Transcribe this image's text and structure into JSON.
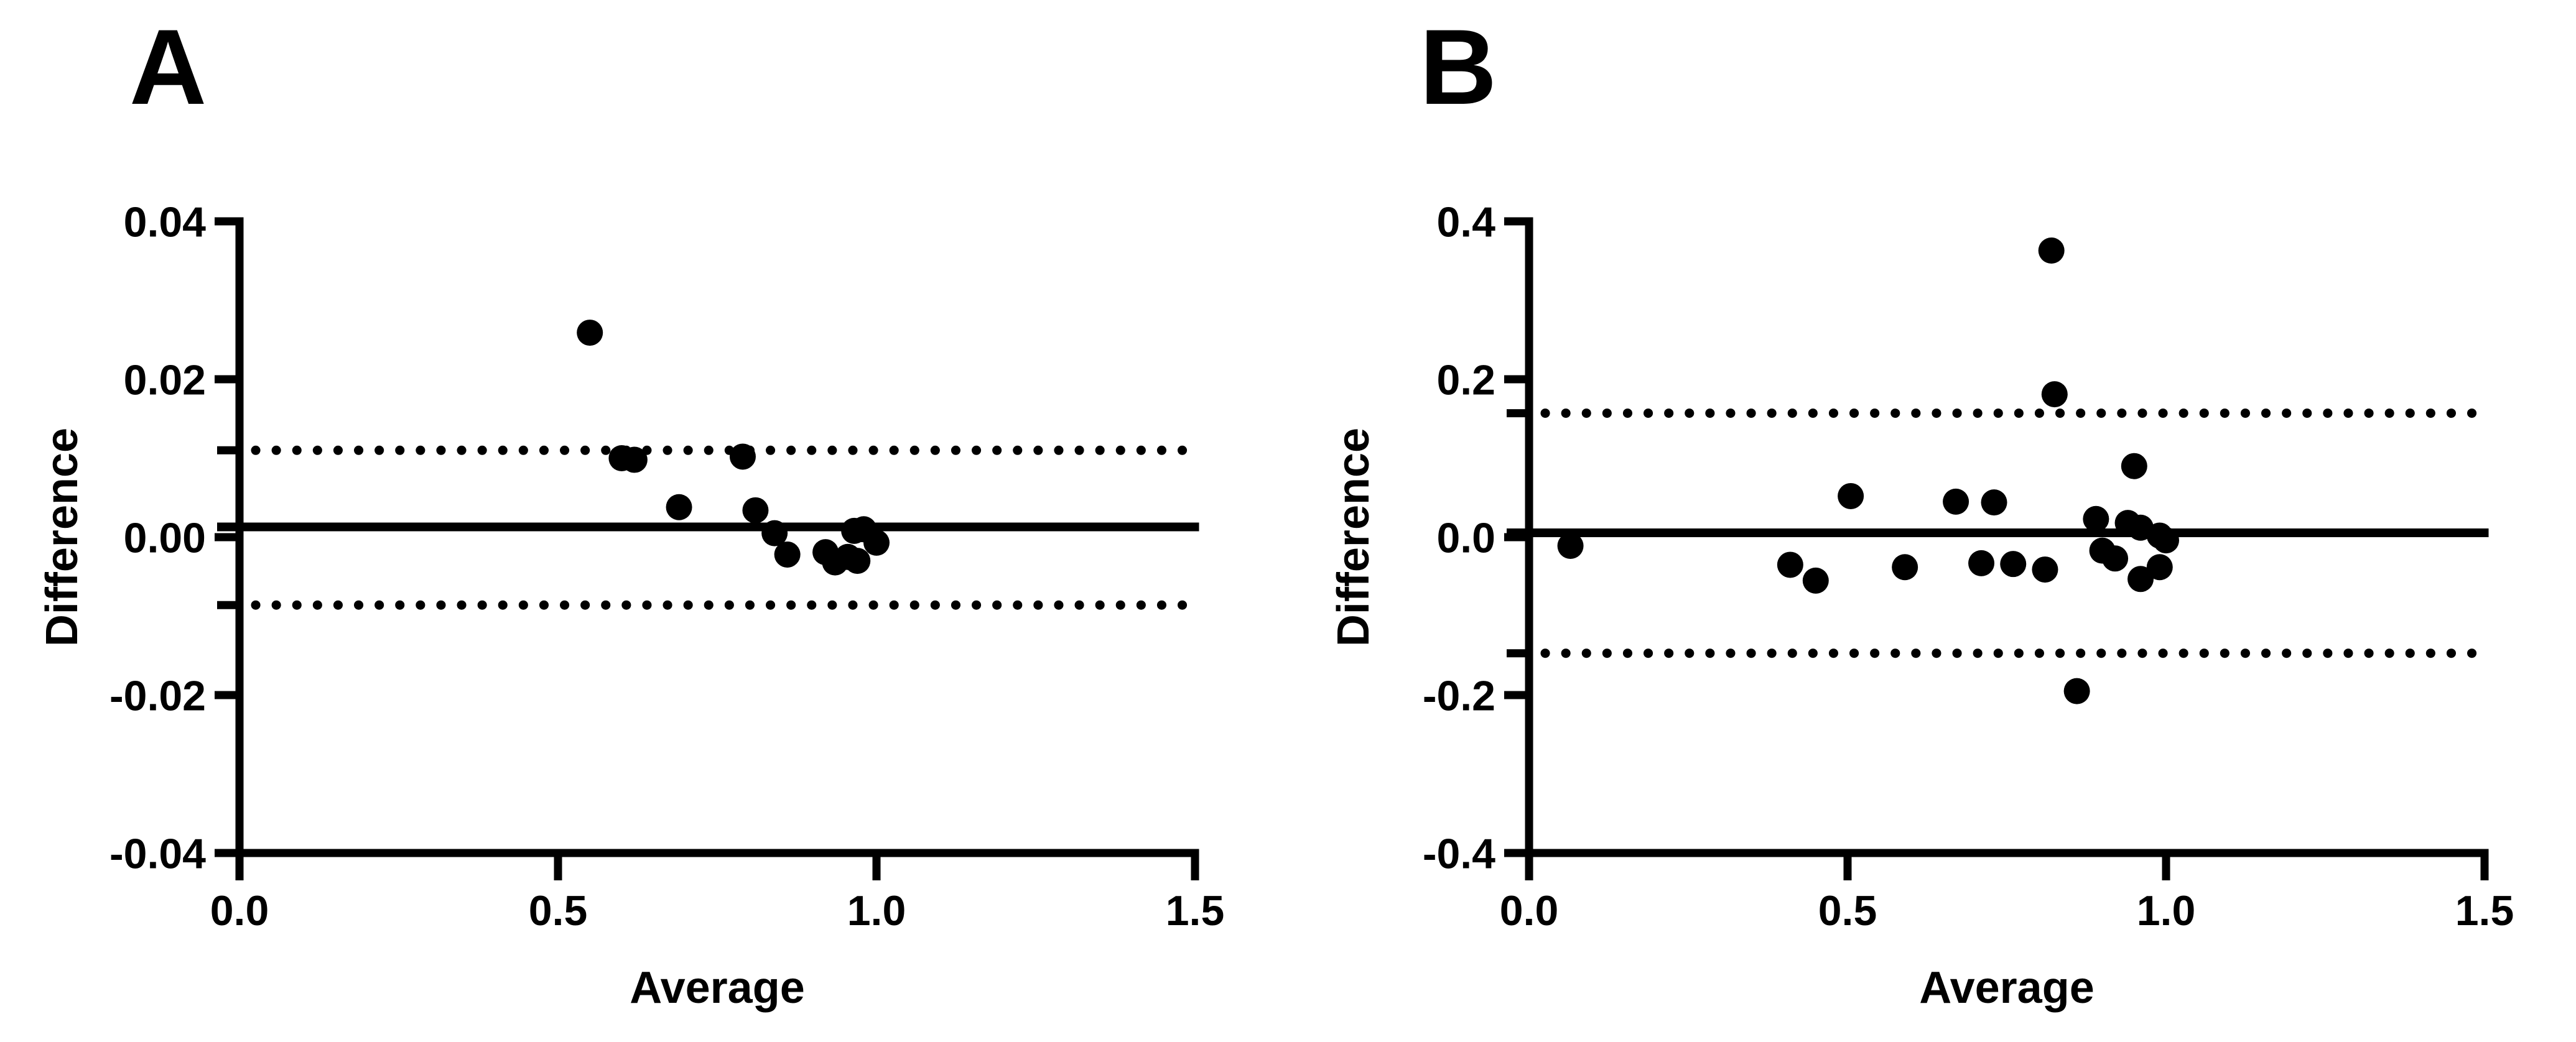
{
  "figure": {
    "background": "#ffffff",
    "foreground": "#000000"
  },
  "chart_data": [
    {
      "type": "scatter",
      "panel": "A",
      "xlabel": "Average",
      "ylabel": "Difference",
      "xlim": [
        0,
        1.5
      ],
      "ylim": [
        -0.04,
        0.04
      ],
      "x_ticks": [
        {
          "v": 0.0,
          "label": "0.0"
        },
        {
          "v": 0.5,
          "label": "0.5"
        },
        {
          "v": 1.0,
          "label": "1.0"
        },
        {
          "v": 1.5,
          "label": "1.5"
        }
      ],
      "y_ticks": [
        {
          "v": 0.04,
          "label": "0.04"
        },
        {
          "v": 0.02,
          "label": "0.02"
        },
        {
          "v": 0.0,
          "label": "0.00"
        },
        {
          "v": -0.02,
          "label": "-0.02"
        },
        {
          "v": -0.04,
          "label": "-0.04"
        }
      ],
      "mean_line": 0.0013,
      "upper_limit": 0.011,
      "lower_limit": -0.0086,
      "points": [
        [
          0.55,
          0.0259
        ],
        [
          0.6,
          0.01
        ],
        [
          0.62,
          0.0098
        ],
        [
          0.69,
          0.0038
        ],
        [
          0.79,
          0.0102
        ],
        [
          0.81,
          0.0034
        ],
        [
          0.84,
          0.0005
        ],
        [
          0.86,
          -0.0022
        ],
        [
          0.92,
          -0.0019
        ],
        [
          0.935,
          -0.0032
        ],
        [
          0.955,
          -0.0025
        ],
        [
          0.965,
          0.0008
        ],
        [
          0.97,
          -0.003
        ],
        [
          0.98,
          0.001
        ],
        [
          1.0,
          -0.0007
        ]
      ]
    },
    {
      "type": "scatter",
      "panel": "B",
      "xlabel": "Average",
      "ylabel": "Difference",
      "xlim": [
        0,
        1.5
      ],
      "ylim": [
        -0.4,
        0.4
      ],
      "x_ticks": [
        {
          "v": 0.0,
          "label": "0.0"
        },
        {
          "v": 0.5,
          "label": "0.5"
        },
        {
          "v": 1.0,
          "label": "1.0"
        },
        {
          "v": 1.5,
          "label": "1.5"
        }
      ],
      "y_ticks": [
        {
          "v": 0.4,
          "label": "0.4"
        },
        {
          "v": 0.2,
          "label": "0.2"
        },
        {
          "v": 0.0,
          "label": "0.0"
        },
        {
          "v": -0.2,
          "label": "-0.2"
        },
        {
          "v": -0.4,
          "label": "-0.4"
        }
      ],
      "mean_line": 0.0055,
      "upper_limit": 0.157,
      "lower_limit": -0.147,
      "points": [
        [
          0.065,
          -0.011
        ],
        [
          0.41,
          -0.035
        ],
        [
          0.45,
          -0.055
        ],
        [
          0.505,
          0.052
        ],
        [
          0.59,
          -0.038
        ],
        [
          0.67,
          0.045
        ],
        [
          0.71,
          -0.033
        ],
        [
          0.73,
          0.044
        ],
        [
          0.76,
          -0.034
        ],
        [
          0.81,
          -0.041
        ],
        [
          0.82,
          0.363
        ],
        [
          0.825,
          0.181
        ],
        [
          0.86,
          -0.195
        ],
        [
          0.89,
          0.023
        ],
        [
          0.9,
          -0.017
        ],
        [
          0.92,
          -0.027
        ],
        [
          0.94,
          0.018
        ],
        [
          0.95,
          0.09
        ],
        [
          0.96,
          0.012
        ],
        [
          0.96,
          -0.053
        ],
        [
          0.99,
          0.002
        ],
        [
          0.99,
          -0.038
        ],
        [
          1.0,
          -0.004
        ]
      ]
    }
  ]
}
